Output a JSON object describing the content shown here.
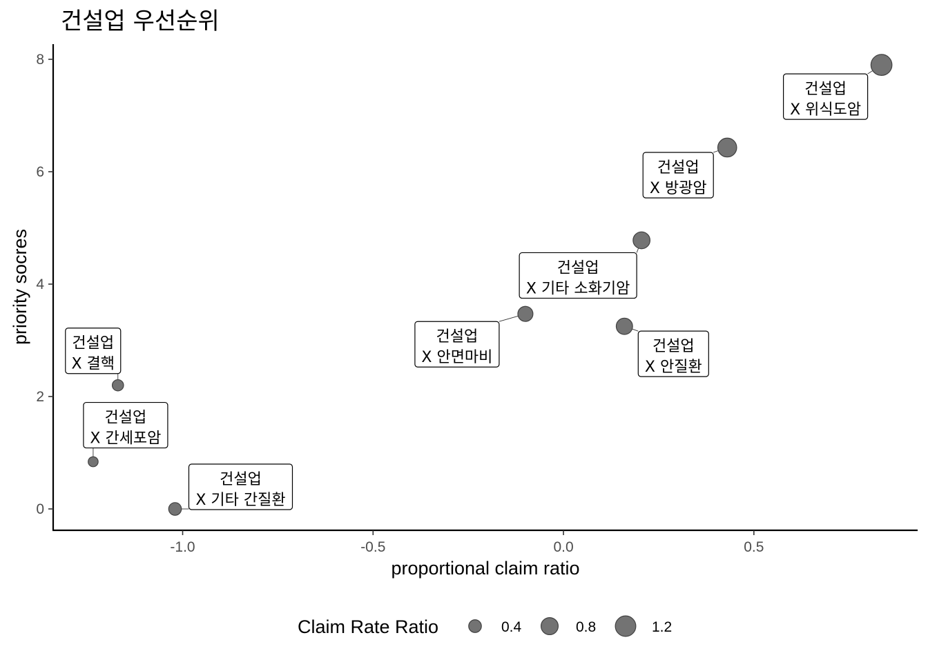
{
  "chart_data": {
    "type": "scatter",
    "title": "건설업  우선순위",
    "xlabel": "proportional claim ratio",
    "ylabel": "priority socres",
    "xlim": [
      -1.34,
      0.93
    ],
    "ylim": [
      -0.38,
      8.27
    ],
    "x_ticks": [
      -1.0,
      -0.5,
      0.0,
      0.5
    ],
    "x_tick_labels": [
      "-1.0",
      "-0.5",
      "0.0",
      "0.5"
    ],
    "y_ticks": [
      0,
      2,
      4,
      6,
      8
    ],
    "y_tick_labels": [
      "0",
      "2",
      "4",
      "6",
      "8"
    ],
    "grid": false,
    "legend": {
      "title": "Claim Rate Ratio",
      "position": "bottom",
      "items": [
        {
          "label": "0.4",
          "size": 0.4
        },
        {
          "label": "0.8",
          "size": 0.8
        },
        {
          "label": "1.2",
          "size": 1.2
        }
      ]
    },
    "points": [
      {
        "x": 0.835,
        "y": 7.9,
        "size": 1.27,
        "label_line1": "건설업",
        "label_line2": "X 위식도암"
      },
      {
        "x": 0.43,
        "y": 6.43,
        "size": 1.0,
        "label_line1": "건설업",
        "label_line2": "X 방광암"
      },
      {
        "x": 0.205,
        "y": 4.78,
        "size": 0.78,
        "label_line1": "건설업",
        "label_line2": "X 기타 소화기암"
      },
      {
        "x": -0.1,
        "y": 3.47,
        "size": 0.6,
        "label_line1": "건설업",
        "label_line2": "X 안면마비"
      },
      {
        "x": 0.16,
        "y": 3.25,
        "size": 0.72,
        "label_line1": "건설업",
        "label_line2": "X 안질환"
      },
      {
        "x": -1.17,
        "y": 2.2,
        "size": 0.3,
        "label_line1": "건설업",
        "label_line2": "X 결핵"
      },
      {
        "x": -1.235,
        "y": 0.84,
        "size": 0.22,
        "label_line1": "건설업",
        "label_line2": "X 간세포암"
      },
      {
        "x": -1.02,
        "y": 0.0,
        "size": 0.4,
        "label_line1": "건설업",
        "label_line2": "X 기타 간질환"
      }
    ]
  }
}
